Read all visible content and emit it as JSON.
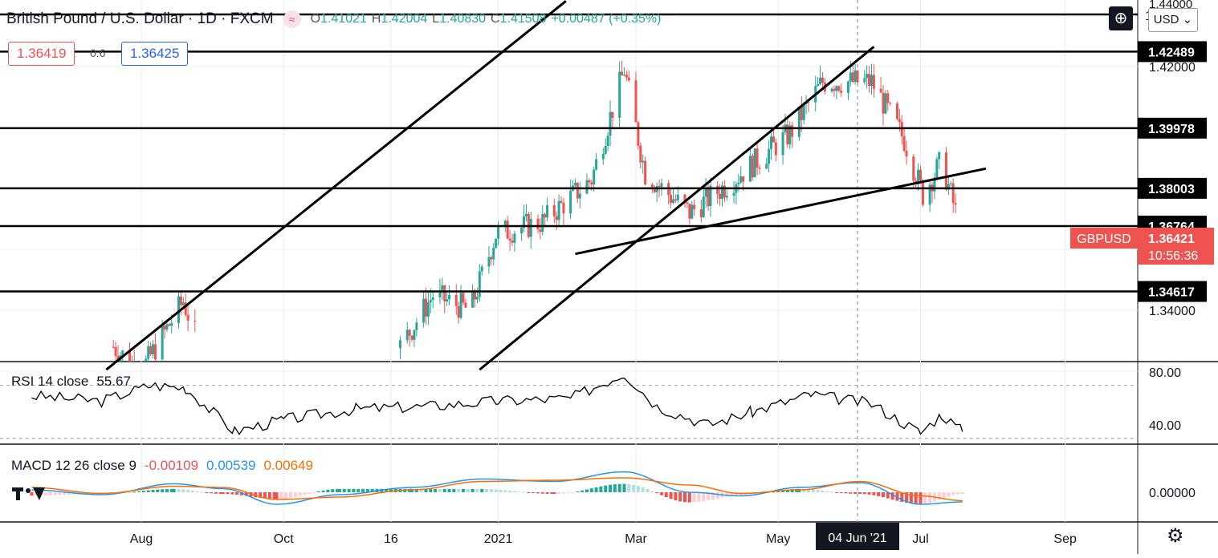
{
  "header": {
    "symbol_title": "British Pound / U.S. Dollar · 1D · FXCM",
    "ohlc": {
      "o_label": "O",
      "o": "1.41021",
      "h_label": "H",
      "h": "1.42004",
      "l_label": "L",
      "l": "1.40830",
      "c_label": "C",
      "c": "1.41508",
      "change": "+0.00487 (+0.35%)"
    },
    "sell_price": "1.36419",
    "spread": "0.6",
    "buy_price": "1.36425",
    "currency": "USD",
    "top_partial_label": "1."
  },
  "colors": {
    "up": "#26a69a",
    "down": "#ef5350",
    "line": "#000000",
    "macd_line": "#2196f3",
    "signal_line": "#ff6d00",
    "hist_up_strong": "#26a69a",
    "hist_up_weak": "#b2dfdb",
    "hist_down_strong": "#ef5350",
    "hist_down_weak": "#ffcdd2",
    "last_price_bg": "#ef5350",
    "badge_bg": "#000000"
  },
  "chart_data": {
    "type": "candlestick",
    "symbol": "GBPUSD",
    "price_axis": {
      "ticks": [
        "1.42000",
        "1.34000"
      ],
      "partial_top_tick": "1.44000",
      "range": [
        1.32,
        1.44
      ]
    },
    "horizontal_levels": [
      "1.42489",
      "1.39978",
      "1.38003",
      "1.36764",
      "1.34617"
    ],
    "last_price": {
      "label": "GBPUSD",
      "value": "1.36421",
      "countdown": "10:56:36"
    },
    "time_axis": {
      "ticks": [
        "Aug",
        "Oct",
        "16",
        "2021",
        "Mar",
        "May",
        "Jul",
        "Sep"
      ],
      "crosshair_date": "04 Jun '21"
    },
    "trend_lines": [
      {
        "from": [
          "Jul 2020",
          1.3205
        ],
        "to": [
          "Jan 2021",
          1.4415
        ],
        "note": "upper parallel channel line"
      },
      {
        "from": [
          "Dec 2020",
          1.3205
        ],
        "to": [
          "Jun 2021",
          1.4265
        ],
        "note": "lower parallel channel line"
      },
      {
        "from": [
          "Feb 2021",
          1.3585
        ],
        "to": [
          "Jul 2021",
          1.3865
        ],
        "note": "rising support line"
      }
    ],
    "price_series": [
      {
        "date": "2020-07-20",
        "close": 1.328
      },
      {
        "date": "2020-08-01",
        "close": 1.32
      },
      {
        "date": "2020-08-19",
        "close": 1.343
      },
      {
        "date": "2020-08-25",
        "close": 1.33
      },
      {
        "date": "2020-11-20",
        "close": 1.328
      },
      {
        "date": "2020-12-04",
        "close": 1.345
      },
      {
        "date": "2020-12-20",
        "close": 1.34
      },
      {
        "date": "2020-12-31",
        "close": 1.365
      },
      {
        "date": "2021-01-20",
        "close": 1.369
      },
      {
        "date": "2021-02-10",
        "close": 1.383
      },
      {
        "date": "2021-02-24",
        "close": 1.419
      },
      {
        "date": "2021-03-05",
        "close": 1.385
      },
      {
        "date": "2021-03-24",
        "close": 1.372
      },
      {
        "date": "2021-04-12",
        "close": 1.383
      },
      {
        "date": "2021-05-06",
        "close": 1.398
      },
      {
        "date": "2021-05-20",
        "close": 1.415
      },
      {
        "date": "2021-06-10",
        "close": 1.415
      },
      {
        "date": "2021-06-24",
        "close": 1.396
      },
      {
        "date": "2021-07-02",
        "close": 1.378
      },
      {
        "date": "2021-07-10",
        "close": 1.389
      },
      {
        "date": "2021-07-19",
        "close": 1.364
      }
    ],
    "rsi": {
      "label": "RSI 14 close",
      "value": "55.67",
      "ticks": [
        "80.00",
        "40.00"
      ],
      "band": [
        70,
        30
      ],
      "series": [
        {
          "date": "2020-06-15",
          "v": 62
        },
        {
          "date": "2020-07-15",
          "v": 58
        },
        {
          "date": "2020-08-05",
          "v": 70
        },
        {
          "date": "2020-08-20",
          "v": 68
        },
        {
          "date": "2020-09-10",
          "v": 35
        },
        {
          "date": "2020-10-01",
          "v": 44
        },
        {
          "date": "2020-11-01",
          "v": 52
        },
        {
          "date": "2020-12-01",
          "v": 54
        },
        {
          "date": "2021-01-01",
          "v": 58
        },
        {
          "date": "2021-02-01",
          "v": 60
        },
        {
          "date": "2021-02-24",
          "v": 79
        },
        {
          "date": "2021-03-10",
          "v": 54
        },
        {
          "date": "2021-04-01",
          "v": 40
        },
        {
          "date": "2021-04-20",
          "v": 50
        },
        {
          "date": "2021-05-15",
          "v": 63
        },
        {
          "date": "2021-06-10",
          "v": 56
        },
        {
          "date": "2021-07-01",
          "v": 34
        },
        {
          "date": "2021-07-10",
          "v": 48
        },
        {
          "date": "2021-07-19",
          "v": 35
        }
      ]
    },
    "macd": {
      "label": "MACD 12 26 close 9",
      "histogram_value": "-0.00109",
      "macd_value": "0.00539",
      "signal_value": "0.00649",
      "ticks": [
        "0.00000"
      ],
      "series": [
        {
          "date": "2020-06-15",
          "macd": 0.002,
          "signal": 0.004
        },
        {
          "date": "2020-07-15",
          "macd": -0.002,
          "signal": -0.001
        },
        {
          "date": "2020-08-15",
          "macd": 0.007,
          "signal": 0.005
        },
        {
          "date": "2020-09-05",
          "macd": 0.003,
          "signal": 0.004
        },
        {
          "date": "2020-09-28",
          "macd": -0.01,
          "signal": -0.006
        },
        {
          "date": "2020-10-25",
          "macd": -0.002,
          "signal": -0.004
        },
        {
          "date": "2020-11-25",
          "macd": 0.004,
          "signal": 0.002
        },
        {
          "date": "2020-12-25",
          "macd": 0.011,
          "signal": 0.009
        },
        {
          "date": "2021-01-25",
          "macd": 0.009,
          "signal": 0.01
        },
        {
          "date": "2021-02-24",
          "macd": 0.017,
          "signal": 0.012
        },
        {
          "date": "2021-03-24",
          "macd": 0.0,
          "signal": 0.006
        },
        {
          "date": "2021-04-15",
          "macd": -0.003,
          "signal": -0.001
        },
        {
          "date": "2021-05-10",
          "macd": 0.004,
          "signal": 0.002
        },
        {
          "date": "2021-06-05",
          "macd": 0.008,
          "signal": 0.009
        },
        {
          "date": "2021-07-01",
          "macd": -0.01,
          "signal": -0.003
        },
        {
          "date": "2021-07-19",
          "macd": -0.008,
          "signal": -0.007
        }
      ]
    }
  }
}
